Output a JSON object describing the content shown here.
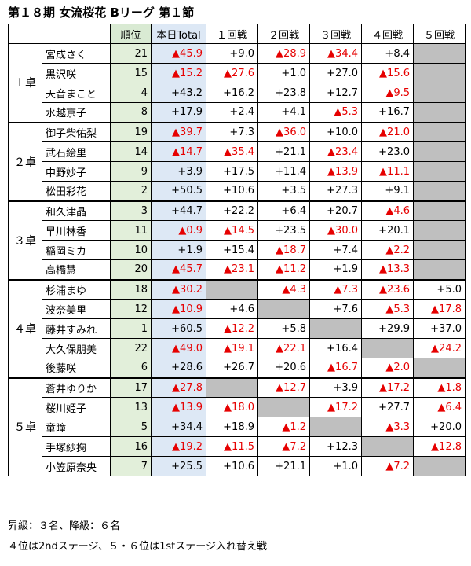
{
  "title": "第１８期 女流桜花 Bリーグ 第１節",
  "headers": {
    "rank": "順位",
    "total": "本日Total",
    "games": [
      "１回戦",
      "２回戦",
      "３回戦",
      "４回戦",
      "５回戦"
    ]
  },
  "tables": [
    {
      "label": "１卓",
      "players": [
        {
          "name": "宮成さく",
          "rank": "21",
          "total": "▲45.9",
          "games": [
            "+9.0",
            "▲28.9",
            "▲34.4",
            "+8.4",
            ""
          ]
        },
        {
          "name": "黒沢咲",
          "rank": "15",
          "total": "▲15.2",
          "games": [
            "▲27.6",
            "+1.0",
            "+27.0",
            "▲15.6",
            ""
          ]
        },
        {
          "name": "天音まこと",
          "rank": "4",
          "total": "+43.2",
          "games": [
            "+16.2",
            "+23.8",
            "+12.7",
            "▲9.5",
            ""
          ]
        },
        {
          "name": "水越京子",
          "rank": "8",
          "total": "+17.9",
          "games": [
            "+2.4",
            "+4.1",
            "▲5.3",
            "+16.7",
            ""
          ]
        }
      ]
    },
    {
      "label": "２卓",
      "players": [
        {
          "name": "御子柴佑梨",
          "rank": "19",
          "total": "▲39.7",
          "games": [
            "+7.3",
            "▲36.0",
            "+10.0",
            "▲21.0",
            ""
          ]
        },
        {
          "name": "武石絵里",
          "rank": "14",
          "total": "▲14.7",
          "games": [
            "▲35.4",
            "+21.1",
            "▲23.4",
            "+23.0",
            ""
          ]
        },
        {
          "name": "中野妙子",
          "rank": "9",
          "total": "+3.9",
          "games": [
            "+17.5",
            "+11.4",
            "▲13.9",
            "▲11.1",
            ""
          ]
        },
        {
          "name": "松田彩花",
          "rank": "2",
          "total": "+50.5",
          "games": [
            "+10.6",
            "+3.5",
            "+27.3",
            "+9.1",
            ""
          ]
        }
      ]
    },
    {
      "label": "３卓",
      "players": [
        {
          "name": "和久津晶",
          "rank": "3",
          "total": "+44.7",
          "games": [
            "+22.2",
            "+6.4",
            "+20.7",
            "▲4.6",
            ""
          ]
        },
        {
          "name": "早川林香",
          "rank": "11",
          "total": "▲0.9",
          "games": [
            "▲14.5",
            "+23.5",
            "▲30.0",
            "+20.1",
            ""
          ]
        },
        {
          "name": "稲岡ミカ",
          "rank": "10",
          "total": "+1.9",
          "games": [
            "+15.4",
            "▲18.7",
            "+7.4",
            "▲2.2",
            ""
          ]
        },
        {
          "name": "高橋慧",
          "rank": "20",
          "total": "▲45.7",
          "games": [
            "▲23.1",
            "▲11.2",
            "+1.9",
            "▲13.3",
            ""
          ]
        }
      ]
    },
    {
      "label": "４卓",
      "players": [
        {
          "name": "杉浦まゆ",
          "rank": "18",
          "total": "▲30.2",
          "games": [
            "",
            "▲4.3",
            "▲7.3",
            "▲23.6",
            "+5.0"
          ]
        },
        {
          "name": "波奈美里",
          "rank": "12",
          "total": "▲10.9",
          "games": [
            "+4.6",
            "",
            "+7.6",
            "▲5.3",
            "▲17.8"
          ]
        },
        {
          "name": "藤井すみれ",
          "rank": "1",
          "total": "+60.5",
          "games": [
            "▲12.2",
            "+5.8",
            "",
            "+29.9",
            "+37.0"
          ]
        },
        {
          "name": "大久保朋美",
          "rank": "22",
          "total": "▲49.0",
          "games": [
            "▲19.1",
            "▲22.1",
            "+16.4",
            "",
            "▲24.2"
          ]
        },
        {
          "name": "後藤咲",
          "rank": "6",
          "total": "+28.6",
          "games": [
            "+26.7",
            "+20.6",
            "▲16.7",
            "▲2.0",
            ""
          ]
        }
      ]
    },
    {
      "label": "５卓",
      "players": [
        {
          "name": "蒼井ゆりか",
          "rank": "17",
          "total": "▲27.8",
          "games": [
            "",
            "▲12.7",
            "+3.9",
            "▲17.2",
            "▲1.8"
          ]
        },
        {
          "name": "桜川姫子",
          "rank": "13",
          "total": "▲13.9",
          "games": [
            "▲18.0",
            "",
            "▲17.2",
            "+27.7",
            "▲6.4"
          ]
        },
        {
          "name": "童瞳",
          "rank": "5",
          "total": "+34.4",
          "games": [
            "+18.9",
            "▲1.2",
            "",
            "▲3.3",
            "+20.0"
          ]
        },
        {
          "name": "手塚紗掬",
          "rank": "16",
          "total": "▲19.2",
          "games": [
            "▲11.5",
            "▲7.2",
            "+12.3",
            "",
            "▲12.8"
          ]
        },
        {
          "name": "小笠原奈央",
          "rank": "7",
          "total": "+25.5",
          "games": [
            "+10.6",
            "+21.1",
            "+1.0",
            "▲7.2",
            ""
          ]
        }
      ]
    }
  ],
  "footer": {
    "line1": "昇級：３名、降級：６名",
    "line2": "４位は2ndステージ、５・６位は1stステージ入れ替え戦"
  },
  "colors": {
    "negative": "#e60000",
    "rank_bg": "#e2efda",
    "total_bg": "#dde8f5",
    "empty_cell": "#bfbfbf"
  }
}
